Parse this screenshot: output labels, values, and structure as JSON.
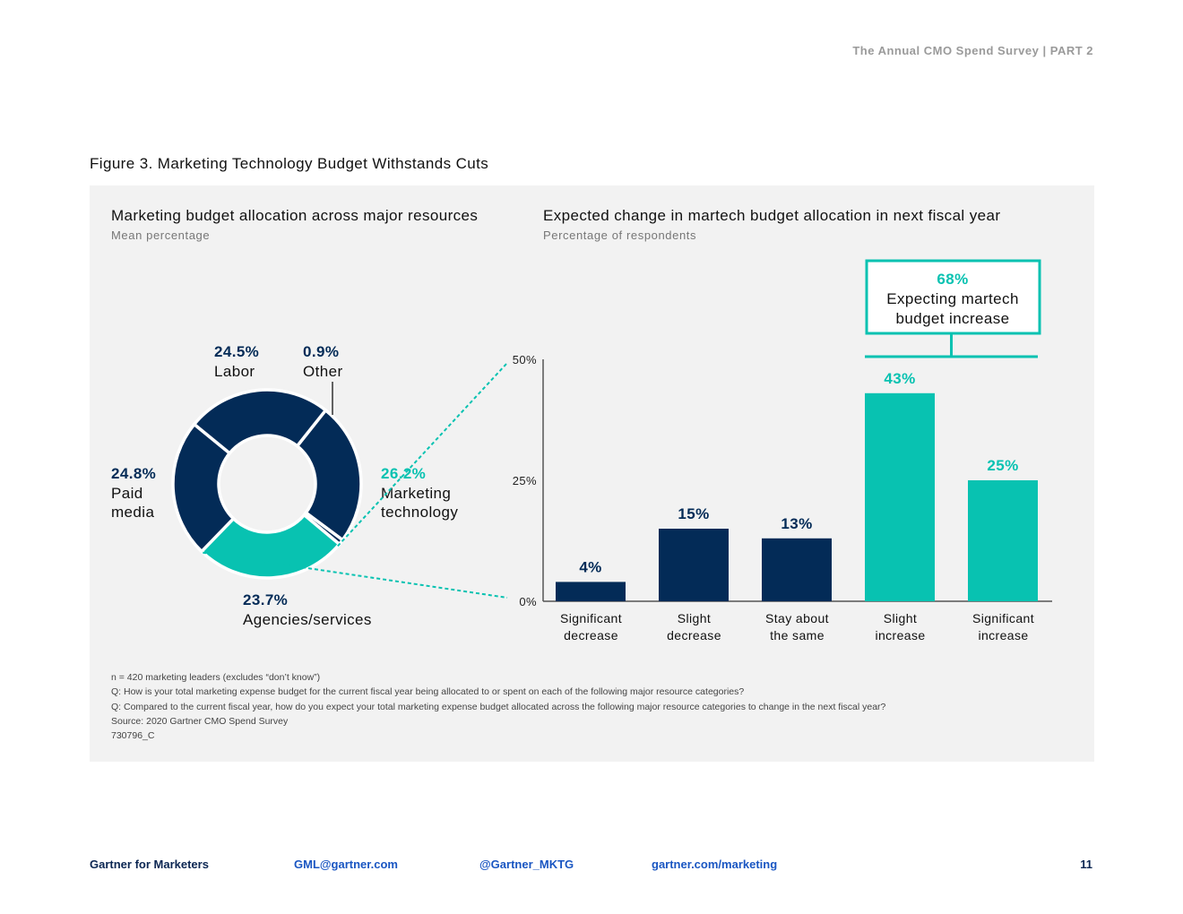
{
  "header": {
    "doc_title": "The Annual CMO Spend Survey  |  PART 2"
  },
  "figure_title": "Figure 3. Marketing Technology Budget Withstands Cuts",
  "colors": {
    "navy": "#032b57",
    "teal": "#08c2b1",
    "panel_bg": "#f2f2f2"
  },
  "chart_data": [
    {
      "type": "pie",
      "title": "Marketing budget allocation across major resources",
      "subtitle": "Mean percentage",
      "slices": [
        {
          "name": "Labor",
          "value": 24.5,
          "label": "24.5%",
          "color": "#032b57"
        },
        {
          "name": "Other",
          "value": 0.9,
          "label": "0.9%",
          "color": "#032b57"
        },
        {
          "name": "Marketing technology",
          "value": 26.2,
          "label": "26.2%",
          "color": "#08c2b1"
        },
        {
          "name": "Agencies/services",
          "value": 23.7,
          "label": "23.7%",
          "color": "#032b57"
        },
        {
          "name": "Paid media",
          "value": 24.8,
          "label": "24.8%",
          "color": "#032b57"
        }
      ]
    },
    {
      "type": "bar",
      "title": "Expected change in martech budget allocation in next fiscal year",
      "subtitle": "Percentage of respondents",
      "categories": [
        "Significant decrease",
        "Slight decrease",
        "Stay about the same",
        "Slight increase",
        "Significant increase"
      ],
      "category_lines": [
        [
          "Significant",
          "decrease"
        ],
        [
          "Slight",
          "decrease"
        ],
        [
          "Stay about",
          "the same"
        ],
        [
          "Slight",
          "increase"
        ],
        [
          "Significant",
          "increase"
        ]
      ],
      "values": [
        4,
        15,
        13,
        43,
        25
      ],
      "value_labels": [
        "4%",
        "15%",
        "13%",
        "43%",
        "25%"
      ],
      "bar_colors": [
        "#032b57",
        "#032b57",
        "#032b57",
        "#08c2b1",
        "#08c2b1"
      ],
      "ylim": [
        0,
        50
      ],
      "yticks": [
        0,
        25,
        50
      ],
      "ytick_labels": [
        "0%",
        "25%",
        "50%"
      ],
      "annotation": {
        "value": "68%",
        "lines": [
          "Expecting martech",
          "budget increase"
        ]
      }
    }
  ],
  "notes": [
    "n = 420 marketing leaders (excludes “don’t know”)",
    "Q: How is your total marketing expense budget for the current fiscal year being allocated to or spent on each of the following major resource categories?",
    "Q: Compared to the current fiscal year, how do you expect your total marketing expense budget allocated across the following major resource categories to change in the next fiscal year?",
    "Source: 2020 Gartner CMO Spend Survey",
    "730796_C"
  ],
  "footer": {
    "brand": "Gartner for Marketers",
    "email": "GML@gartner.com",
    "twitter": "@Gartner_MKTG",
    "website": "gartner.com/marketing",
    "page_number": "11"
  }
}
